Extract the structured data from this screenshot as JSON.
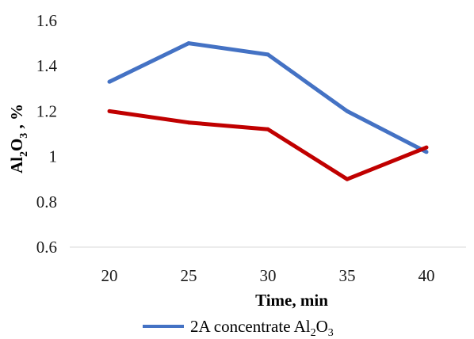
{
  "chart_data": {
    "type": "line",
    "x": [
      20,
      25,
      30,
      35,
      40
    ],
    "xlabel": "Time, min",
    "ylabel": {
      "parts": [
        "Al",
        "2",
        "O",
        "3",
        " , %"
      ]
    },
    "ylim": [
      0.6,
      1.6
    ],
    "yticks": [
      "0.6",
      "0.8",
      "1",
      "1.2",
      "1.4",
      "1.6"
    ],
    "xticks": [
      "20",
      "25",
      "30",
      "35",
      "40"
    ],
    "grid": false,
    "legend_position": "bottom",
    "series": [
      {
        "name": "2A concentrate Al2O3",
        "legend_parts": [
          "2A concentrate Al",
          "2",
          "O",
          "3"
        ],
        "color": "#4472c4",
        "values": [
          1.33,
          1.5,
          1.45,
          1.2,
          1.02
        ]
      },
      {
        "color": "#c00000",
        "values": [
          1.2,
          1.15,
          1.12,
          0.9,
          1.04
        ]
      }
    ]
  }
}
